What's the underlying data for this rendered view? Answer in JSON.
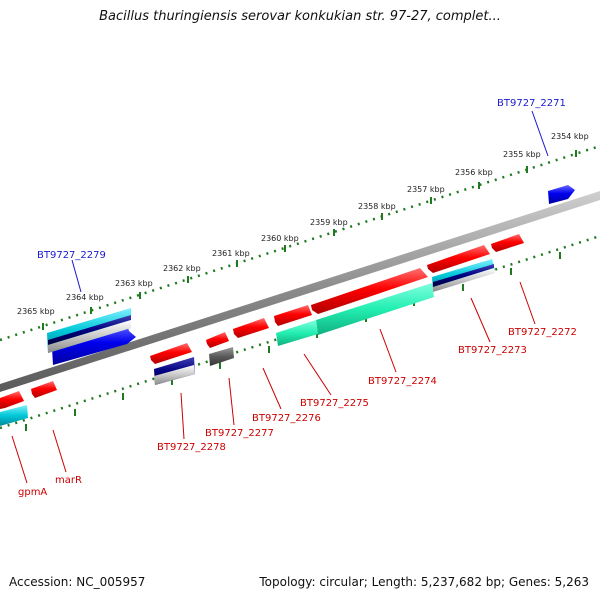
{
  "title": "Bacillus thuringiensis serovar konkukian str. 97-27, complet...",
  "footer": {
    "accession": "Accession: NC_005957",
    "topology": "Topology: circular; Length: 5,237,682 bp; Genes: 5,263"
  },
  "colors": {
    "backbone": "#888888",
    "ticks": "#1f7a1f",
    "forward_gene": "#0000ee",
    "reverse_gene": "#ff0000",
    "forward_label": "#1a1ad0",
    "reverse_label": "#cc0000",
    "cds_teal": "#00ffcc",
    "cds_cyan": "#00ccdd",
    "cds_navy": "#000080",
    "cds_gray": "#555555"
  },
  "scale_labels": [
    "2354 kbp",
    "2355 kbp",
    "2356 kbp",
    "2357 kbp",
    "2358 kbp",
    "2359 kbp",
    "2360 kbp",
    "2361 kbp",
    "2362 kbp",
    "2363 kbp",
    "2364 kbp",
    "2365 kbp"
  ],
  "gene_labels": {
    "bt2271": "BT9727_2271",
    "bt2272": "BT9727_2272",
    "bt2273": "BT9727_2273",
    "bt2274": "BT9727_2274",
    "bt2275": "BT9727_2275",
    "bt2276": "BT9727_2276",
    "bt2277": "BT9727_2277",
    "bt2278": "BT9727_2278",
    "bt2279": "BT9727_2279",
    "marR": "marR",
    "gpmA": "gpmA"
  }
}
